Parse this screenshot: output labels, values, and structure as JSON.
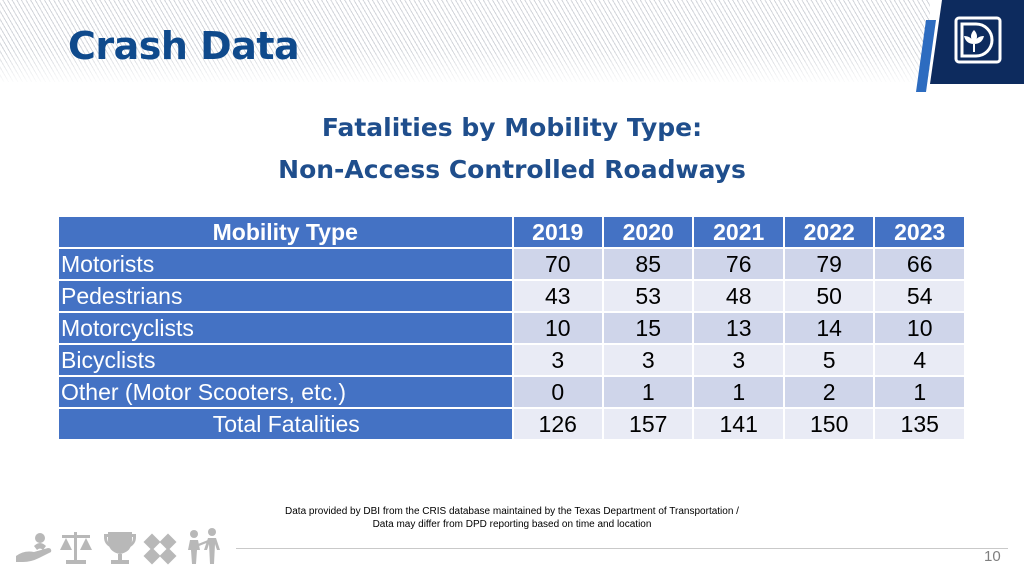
{
  "header": {
    "title": "Crash Data"
  },
  "subtitle": {
    "line1": "Fatalities by Mobility Type:",
    "line2": "Non-Access Controlled Roadways"
  },
  "table": {
    "columns": [
      "Mobility Type",
      "2019",
      "2020",
      "2021",
      "2022",
      "2023"
    ],
    "rows": [
      {
        "label": "Motorists",
        "values": [
          "70",
          "85",
          "76",
          "79",
          "66"
        ]
      },
      {
        "label": "Pedestrians",
        "values": [
          "43",
          "53",
          "48",
          "50",
          "54"
        ]
      },
      {
        "label": "Motorcyclists",
        "values": [
          "10",
          "15",
          "13",
          "14",
          "10"
        ]
      },
      {
        "label": "Bicyclists",
        "values": [
          "3",
          "3",
          "3",
          "5",
          "4"
        ]
      },
      {
        "label": "Other (Motor Scooters, etc.)",
        "values": [
          "0",
          "1",
          "1",
          "2",
          "1"
        ]
      },
      {
        "label": "Total Fatalities",
        "values": [
          "126",
          "157",
          "141",
          "150",
          "135"
        ]
      }
    ]
  },
  "footnote": {
    "line1": "Data provided by DBI from the CRIS database maintained by the Texas Department of Transportation /",
    "line2": "Data may differ from DPD reporting based on time and location"
  },
  "footer": {
    "page_number": "10",
    "icons": [
      "hand-icon",
      "scales-icon",
      "trophy-icon",
      "diversity-icon",
      "people-icon"
    ]
  },
  "colors": {
    "title": "#0f4a8c",
    "header_blue": "#4472c4",
    "row_light": "#e9ebf5",
    "row_mid": "#cfd5ea",
    "logo_navy": "#0d2b5e",
    "logo_accent": "#2d6cc0"
  }
}
